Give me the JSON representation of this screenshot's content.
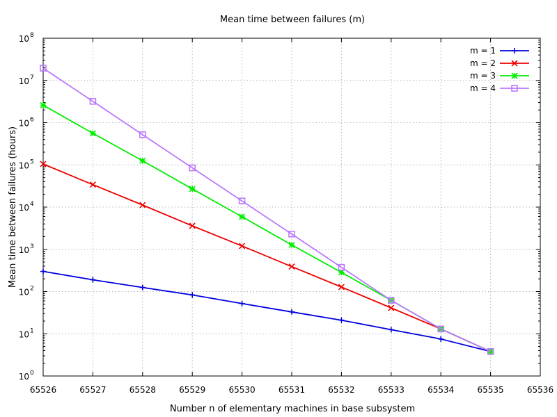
{
  "chart_data": {
    "type": "line",
    "title": "Mean time between failures (m)",
    "xlabel": "Number n of elementary machines in base subsystem",
    "ylabel": "Mean time between failures (hours)",
    "xlim": [
      65526,
      65536
    ],
    "ylim": [
      1,
      100000000
    ],
    "yscale": "log",
    "grid": true,
    "legend_position": "top-right",
    "x_ticks": [
      "65526",
      "65527",
      "65528",
      "65529",
      "65530",
      "65531",
      "65532",
      "65533",
      "65534",
      "65535",
      "65536"
    ],
    "y_ticks": [
      {
        "base": "10",
        "exp": "0"
      },
      {
        "base": "10",
        "exp": "1"
      },
      {
        "base": "10",
        "exp": "2"
      },
      {
        "base": "10",
        "exp": "3"
      },
      {
        "base": "10",
        "exp": "4"
      },
      {
        "base": "10",
        "exp": "5"
      },
      {
        "base": "10",
        "exp": "6"
      },
      {
        "base": "10",
        "exp": "7"
      },
      {
        "base": "10",
        "exp": "8"
      }
    ],
    "series": [
      {
        "name": "m = 1",
        "color": "#0000dd",
        "marker": "plus",
        "x": [
          65526,
          65527,
          65528,
          65529,
          65530,
          65531,
          65532,
          65533,
          65534,
          65535
        ],
        "values": [
          300,
          190,
          125,
          83,
          52,
          33,
          21,
          12.5,
          7.5,
          3.8
        ]
      },
      {
        "name": "m = 2",
        "color": "#ee0000",
        "marker": "cross",
        "x": [
          65526,
          65527,
          65528,
          65529,
          65530,
          65531,
          65532,
          65533,
          65534,
          65535
        ],
        "values": [
          105000,
          34000,
          11200,
          3600,
          1200,
          390,
          128,
          41,
          13,
          3.8
        ]
      },
      {
        "name": "m = 3",
        "color": "#00ee00",
        "marker": "star",
        "x": [
          65526,
          65527,
          65528,
          65529,
          65530,
          65531,
          65532,
          65533,
          65534,
          65535
        ],
        "values": [
          2600000,
          560000,
          125000,
          27000,
          5900,
          1270,
          285,
          62,
          13,
          3.8
        ]
      },
      {
        "name": "m = 4",
        "color": "#bb77ff",
        "marker": "square",
        "x": [
          65526,
          65527,
          65528,
          65529,
          65530,
          65531,
          65532,
          65533,
          65534,
          65535
        ],
        "values": [
          19500000,
          3200000,
          520000,
          85000,
          14000,
          2300,
          375,
          62,
          13,
          3.8
        ]
      }
    ]
  }
}
